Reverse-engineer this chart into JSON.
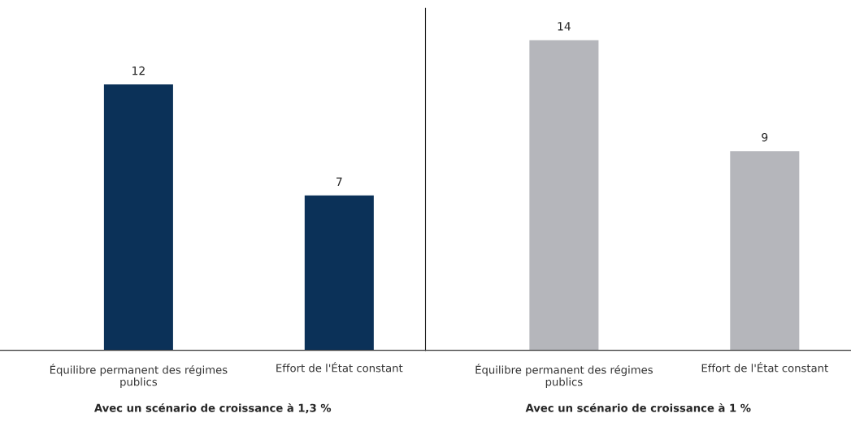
{
  "chart_data": [
    {
      "type": "bar",
      "categories": [
        "Équilibre permanent des régimes\npublics",
        "Effort de l'État constant"
      ],
      "values": [
        12,
        7
      ],
      "color": "#0b3158",
      "data_labels": true,
      "xlabel": "Avec un scénario de croissance à 1,3 %"
    },
    {
      "type": "bar",
      "categories": [
        "Équilibre permanent des régimes\npublics",
        "Effort de l'État constant"
      ],
      "values": [
        14,
        9
      ],
      "color": "#b5b6bb",
      "data_labels": true,
      "xlabel": "Avec un scénario de croissance à 1 %"
    }
  ]
}
